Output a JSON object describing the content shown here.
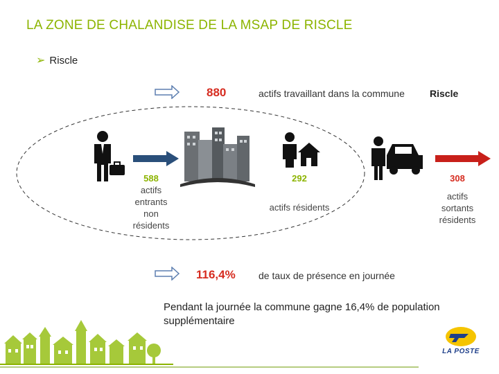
{
  "title": "LA ZONE DE CHALANDISE DE LA MSAP DE RISCLE",
  "bullet": "Riscle",
  "top_stat": {
    "value": "880",
    "text": "actifs travaillant dans la commune",
    "place": "Riscle"
  },
  "entrants": {
    "value": "588",
    "label_lines": [
      "actifs",
      "entrants",
      "non",
      "résidents"
    ]
  },
  "residents": {
    "value": "292",
    "label": "actifs résidents"
  },
  "sortants": {
    "value": "308",
    "label_lines": [
      "actifs",
      "sortants",
      "résidents"
    ]
  },
  "bottom_stat": {
    "value": "116,4%",
    "text": "de taux de présence en journée"
  },
  "note": "Pendant la journée la commune gagne 16,4% de population supplémentaire",
  "logo_text": "LA POSTE",
  "colors": {
    "green": "#8cb400",
    "red": "#d62c20",
    "blue": "#2a4f7a",
    "logo_yellow": "#f5c400",
    "logo_blue": "#1e3f8a"
  },
  "icons": [
    "hollow-arrow-icon",
    "businessman-briefcase-icon",
    "blue-arrow-icon",
    "city-buildings-icon",
    "worker-house-icon",
    "person-car-icon",
    "red-arrow-icon",
    "village-skyline-icon",
    "la-poste-logo-icon"
  ]
}
